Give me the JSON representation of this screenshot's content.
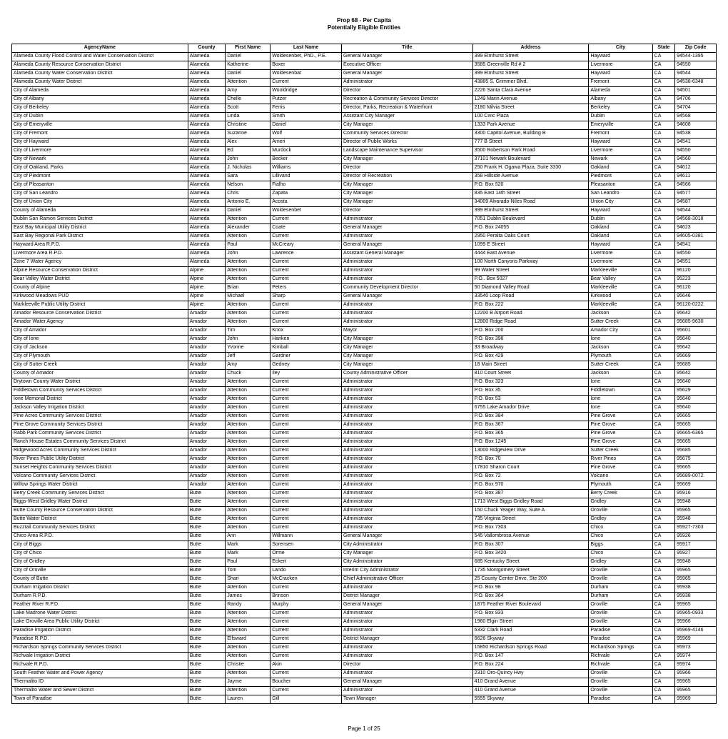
{
  "doc": {
    "title_line1": "Prop 68 - Per Capita",
    "title_line2": "Potentially Eligible Entities",
    "footer": "Page 1 of 25"
  },
  "table": {
    "columns": [
      "AgencyName",
      "County",
      "First Name",
      "Last Name",
      "Title",
      "Address",
      "City",
      "State",
      "Zip Code"
    ],
    "rows": [
      [
        "Alameda County Flood Control and Water Conservation District",
        "Alameda",
        "Daniel",
        "Woldesenbet, PhD., P.E.",
        "General Manager",
        "399 Elmhurst Street",
        "Hayward",
        "CA",
        "94544-1395"
      ],
      [
        "Alameda County Resource Conservation District",
        "Alameda",
        "Katherine",
        "Boxer",
        "Executive Officer",
        "3585 Greenville Rd # 2",
        "Livermore",
        "CA",
        "94550"
      ],
      [
        "Alameda County Water Conservation District",
        "Alameda",
        "Daniel",
        "Woldesenbat",
        "General Manager",
        "399 Elmhurst Street",
        "Hayward",
        "CA",
        "94544"
      ],
      [
        "Alameda County Water District",
        "Alameda",
        "Attention",
        "Current",
        "Administrator",
        "43885 S. Grimmer Blvd.",
        "Fremont",
        "CA",
        "94538-6348"
      ],
      [
        "City of Alameda",
        "Alameda",
        "Amy",
        "Wooldridge",
        "Director",
        "2226 Santa Clara Avenue",
        "Alameda",
        "CA",
        "94501"
      ],
      [
        "City of Albany",
        "Alameda",
        "Chelle",
        "Putzer",
        "Recreation & Community Services Director",
        "1249 Marin Avenue",
        "Albany",
        "CA",
        "94706"
      ],
      [
        "City of Berkeley",
        "Alameda",
        "Scott",
        "Ferris",
        "Director, Parks, Recreation & Waterfront",
        "2180 Milvia Street",
        "Berkeley",
        "CA",
        "94704"
      ],
      [
        "City of Dublin",
        "Alameda",
        "Linda",
        "Smith",
        "Assistant City Manager",
        "100 Civic Plaza",
        "Dublin",
        "CA",
        "94568"
      ],
      [
        "City of Emeryville",
        "Alameda",
        "Christine",
        "Daniel",
        "City Manager",
        "1333 Park Avenue",
        "Emeryville",
        "CA",
        "94608"
      ],
      [
        "City of Fremont",
        "Alameda",
        "Suzanne",
        "Wolf",
        "Community Services Director",
        "3300 Capitol Avenue, Building B",
        "Fremont",
        "CA",
        "94538"
      ],
      [
        "City of Hayward",
        "Alameda",
        "Alex",
        "Ameri",
        "Director of Public Works",
        "777 B Street",
        "Hayward",
        "CA",
        "94541"
      ],
      [
        "City of Livermore",
        "Alameda",
        "Ed",
        "Murdock",
        "Landscape Maintenance Supervisor",
        "3500 Robertson Park Road",
        "Livermore",
        "CA",
        "94550"
      ],
      [
        "City of Newark",
        "Alameda",
        "John",
        "Becker",
        "City Manager",
        "37101 Newark Boulevard",
        "Newark",
        "CA",
        "94560"
      ],
      [
        "City of Oakland, Parks",
        "Alameda",
        "J. Nicholas",
        "Williams",
        "Director",
        "250 Frank H. Ogawa Plaza, Suite 3330",
        "Oakland",
        "CA",
        "94612"
      ],
      [
        "City of Piedmont",
        "Alameda",
        "Sara",
        "Lillivand",
        "Director of Recreation",
        "358 Hillside Avenue",
        "Piedmont",
        "CA",
        "94611"
      ],
      [
        "City of Pleasanton",
        "Alameda",
        "Nelson",
        "Fialho",
        "City Manager",
        "P.O. Box 520",
        "Pleasanton",
        "CA",
        "94566"
      ],
      [
        "City of San Leandro",
        "Alameda",
        "Chris",
        "Zapata",
        "City Manager",
        "835 East 14th Street",
        "San Leandro",
        "CA",
        "94577"
      ],
      [
        "City of Union City",
        "Alameda",
        "Antonio E.",
        "Acosta",
        "City Manager",
        "34009 Alvarado-Niles Road",
        "Union City",
        "CA",
        "94587"
      ],
      [
        "County of Alameda",
        "Alameda",
        "Daniel",
        "Woldesenbet",
        "Director",
        "399 Elmhurst Street",
        "Hayward",
        "CA",
        "94544"
      ],
      [
        "Dublin San Ramon Services District",
        "Alameda",
        "Attention",
        "Current",
        "Administrator",
        "7051 Dublin Boulevard",
        "Dublin",
        "CA",
        "94568-3018"
      ],
      [
        "East Bay Municipal Utility District",
        "Alameda",
        "Alexander",
        "Coate",
        "General Manager",
        "P.O. Box 24055",
        "Oakland",
        "CA",
        "94623"
      ],
      [
        "East Bay Regional Park District",
        "Alameda",
        "Attention",
        "Current",
        "Administrator",
        "2950 Peralta Oaks Court",
        "Oakland",
        "CA",
        "94605-0381"
      ],
      [
        "Hayward Area R.P.D.",
        "Alameda",
        "Paul",
        "McCreary",
        "General Manager",
        "1099 E Street",
        "Hayward",
        "CA",
        "94541"
      ],
      [
        "Livermore Area R.P.D.",
        "Alameda",
        "John",
        "Lawrence",
        "Assistant General Manager",
        "4444 East Avenue",
        "Livermore",
        "CA",
        "94550"
      ],
      [
        "Zone 7 Water Agency",
        "Alameda",
        "Attention",
        "Current",
        "Administrator",
        "100 North Canyons Parkway",
        "Livermore",
        "CA",
        "94551"
      ],
      [
        "Alpine Resource Conservation District",
        "Alpine",
        "Attention",
        "Current",
        "Administrator",
        "99 Water Street",
        "Markleeville",
        "CA",
        "96120"
      ],
      [
        "Bear Valley Water District",
        "Alpine",
        "Attention",
        "Current",
        "Administrator",
        "P.O.. Box 5027",
        "Bear Valley",
        "CA",
        "95223"
      ],
      [
        "County of Alpine",
        "Alpine",
        "Brian",
        "Peters",
        "Community Development Director",
        "50 Diamond Valley Road",
        "Markleeville",
        "CA",
        "96120"
      ],
      [
        "Kirkwood Meadows PUD",
        "Alpine",
        "Michael",
        "Sharp",
        "General Manager",
        "33540 Loop Road",
        "Kirkwood",
        "CA",
        "95646"
      ],
      [
        "Markleeville Public Utility District",
        "Alpine",
        "Attention",
        "Current",
        "Administrator",
        "P.O. Box 222",
        "Markleeville",
        "CA",
        "96120-0222"
      ],
      [
        "Amador Resource Conservation District",
        "Amador",
        "Attention",
        "Current",
        "Administrator",
        "12200 B Airport Road",
        "Jackson",
        "CA",
        "95642"
      ],
      [
        "Amador Water Agency",
        "Amador",
        "Attention",
        "Current",
        "Administrator",
        "12800 Ridge Road",
        "Sutter Creek",
        "CA",
        "95685-9630"
      ],
      [
        "City of Amador",
        "Amador",
        "Tim",
        "Knox",
        "Mayor",
        "P.O. Box 200",
        "Amador City",
        "CA",
        "95601"
      ],
      [
        "City of Ione",
        "Amador",
        "John",
        "Hanken",
        "City Manager",
        "P.O. Box 398",
        "Ione",
        "CA",
        "95640"
      ],
      [
        "City of Jackson",
        "Amador",
        "Yvonne",
        "Kimball",
        "City Manager",
        "33 Broadway",
        "Jackson",
        "CA",
        "95642"
      ],
      [
        "City of Plymouth",
        "Amador",
        "Jeff",
        "Gardner",
        "City Manager",
        "P.O. Box 429",
        "Plymouth",
        "CA",
        "95669"
      ],
      [
        "City of Sutter Creek",
        "Amador",
        "Amy",
        "Gedney",
        "City Manager",
        "18 Main Street",
        "Sutter Creek",
        "CA",
        "95685"
      ],
      [
        "County of Amador",
        "Amador",
        "Chuck",
        "Iley",
        "County Administrative Officer",
        "810 Court Street",
        "Jackson",
        "CA",
        "95642"
      ],
      [
        "Drytown County Water District",
        "Amador",
        "Attention",
        "Current",
        "Administrator",
        "P.O. Box 323",
        "Ione",
        "CA",
        "95640"
      ],
      [
        "Fiddletown Community Services District",
        "Amador",
        "Attention",
        "Current",
        "Administrator",
        "P.O. Box 35",
        "Fiddletown",
        "CA",
        "95629"
      ],
      [
        "Ione Memorial District",
        "Amador",
        "Attention",
        "Current",
        "Administrator",
        "P.O. Box 53",
        "Ione",
        "CA",
        "95640"
      ],
      [
        "Jackson Valley Irrigation District",
        "Amador",
        "Attention",
        "Current",
        "Administrator",
        "6755 Lake Amador Drive",
        "Ione",
        "CA",
        "95640"
      ],
      [
        "Pine Acres Community Services District",
        "Amador",
        "Attention",
        "Current",
        "Administrator",
        "P.O. Box 384",
        "Pine Grove",
        "CA",
        "95665"
      ],
      [
        "Pine Grove Community Services District",
        "Amador",
        "Attention",
        "Current",
        "Administrator",
        "P.O. Box 367",
        "Pine Grove",
        "CA",
        "95665"
      ],
      [
        "Rabb Park Community Services District",
        "Amador",
        "Attention",
        "Current",
        "Administrator",
        "P.O. Box 365",
        "Pine Grove",
        "CA",
        "95665-6365"
      ],
      [
        "Ranch House Estates Community Services District",
        "Amador",
        "Attention",
        "Current",
        "Administrator",
        "P.O. Box 1245",
        "Pine Grove",
        "CA",
        "95665"
      ],
      [
        "Ridgewood Acres Community Services District",
        "Amador",
        "Attention",
        "Current",
        "Administrator",
        "13000 Ridgeview Drive",
        "Sutter Creek",
        "CA",
        "95685"
      ],
      [
        "River Pines Public Utility District",
        "Amador",
        "Attention",
        "Current",
        "Administrator",
        "P.O. Box 70",
        "River Pines",
        "CA",
        "95675"
      ],
      [
        "Sunset Heights Community Services District",
        "Amador",
        "Attention",
        "Current",
        "Administrator",
        "17810 Sharon Court",
        "Pine Grove",
        "CA",
        "95665"
      ],
      [
        "Volcano Community Services District",
        "Amador",
        "Attention",
        "Current",
        "Administrator",
        "P.O. Box 72",
        "Volcano",
        "CA",
        "95689-0072"
      ],
      [
        "Willow Springs Water District",
        "Amador",
        "Attention",
        "Current",
        "Administrator",
        "P.O. Box 970",
        "Plymouth",
        "CA",
        "95669"
      ],
      [
        "Berry Creek Community Services District",
        "Butte",
        "Attention",
        "Current",
        "Administrator",
        "P.O. Box 387",
        "Berry Creek",
        "CA",
        "95916"
      ],
      [
        "Biggs-West Gridley Water District",
        "Butte",
        "Attention",
        "Current",
        "Administrator",
        "1713 West Biggs Gridley Road",
        "Gridley",
        "CA",
        "95948"
      ],
      [
        "Butte County Resource Conservation District",
        "Butte",
        "Attention",
        "Current",
        "Administrator",
        "150 Chuck Yeager Way, Suite A",
        "Oroville",
        "CA",
        "95965"
      ],
      [
        "Butte Water District",
        "Butte",
        "Attention",
        "Current",
        "Administrator",
        "735 Virginia Street",
        "Gridley",
        "CA",
        "95948"
      ],
      [
        "Buzztail Community Services District",
        "Butte",
        "Attention",
        "Current",
        "Administrator",
        "P.O. Box 7303",
        "Chico",
        "CA",
        "95927-7303"
      ],
      [
        "Chico Area R.P.D.",
        "Butte",
        "Ann",
        "Willmann",
        "General Manager",
        "545 Vallombrosa Avenue",
        "Chico",
        "CA",
        "95926"
      ],
      [
        "City of Biggs",
        "Butte",
        "Mark",
        "Sorensen",
        "City Administrator",
        "P.O. Box 307",
        "Biggs",
        "CA",
        "95917"
      ],
      [
        "City of Chico",
        "Butte",
        "Mark",
        "Orme",
        "City Manager",
        "P.O. Box 3420",
        "Chico",
        "CA",
        "95927"
      ],
      [
        "City of Gridley",
        "Butte",
        "Paul",
        "Eckert",
        "City Administrator",
        "685 Kentucky Street",
        "Gridley",
        "CA",
        "95948"
      ],
      [
        "City of Oroville",
        "Butte",
        "Tom",
        "Lando",
        "Interim City Administrator",
        "1735 Montgomery Street",
        "Oroville",
        "CA",
        "95965"
      ],
      [
        "County of Butte",
        "Butte",
        "Shari",
        "McCracken",
        "Chief Administrative Officer",
        "25 County Center Drive, Ste 200",
        "Oroville",
        "CA",
        "95965"
      ],
      [
        "Durham Irrigation District",
        "Butte",
        "Attention",
        "Current",
        "Administrator",
        "P.O. Box 98",
        "Durham",
        "CA",
        "95938"
      ],
      [
        "Durham R.P.D.",
        "Butte",
        "James",
        "Brinson",
        "District Manager",
        "P.O. Box 364",
        "Durham",
        "CA",
        "95938"
      ],
      [
        "Feather River R.P.D.",
        "Butte",
        "Randy",
        "Murphy",
        "General Manager",
        "1875 Feather River Boulevard",
        "Oroville",
        "CA",
        "95965"
      ],
      [
        "Lake Madrone Water District",
        "Butte",
        "Attention",
        "Current",
        "Administrator",
        "P.O. Box 933",
        "Oroville",
        "CA",
        "95965-0933"
      ],
      [
        "Lake Oroville Area Public Utility District",
        "Butte",
        "Attention",
        "Current",
        "Administrator",
        "1960 Elgin Street",
        "Oroville",
        "CA",
        "95966"
      ],
      [
        "Paradise Irrigation District",
        "Butte",
        "Attention",
        "Current",
        "Administrator",
        "6332 Clark Road",
        "Paradise",
        "CA",
        "95969-4146"
      ],
      [
        "Paradise R.P.D.",
        "Butte",
        "Elfsward",
        "Current",
        "District Manager",
        "6626 Skyway",
        "Paradise",
        "CA",
        "95969"
      ],
      [
        "Richardson Springs Community Services District",
        "Butte",
        "Attention",
        "Current",
        "Administrator",
        "15850 Richardson Springs Road",
        "Richardson Springs",
        "CA",
        "95973"
      ],
      [
        "Richvale Irrigation District",
        "Butte",
        "Attention",
        "Current",
        "Administrator",
        "P.O. Box 147",
        "Richvale",
        "CA",
        "95974"
      ],
      [
        "Richvale R.P.D.",
        "Butte",
        "Christie",
        "Akin",
        "Director",
        "P.O. Box 224",
        "Richvale",
        "CA",
        "95974"
      ],
      [
        "South Feather Water and Power Agency",
        "Butte",
        "Attention",
        "Current",
        "Administrator",
        "2310 Oro-Quincy Hwy",
        "Oroville",
        "CA",
        "95966"
      ],
      [
        "Thermalito ID",
        "Butte",
        "Jayme",
        "Boucher",
        "General Manager",
        "410 Grand Avenue",
        "Oroville",
        "CA",
        "95965"
      ],
      [
        "Thermalito Water and Sewer District",
        "Butte",
        "Attention",
        "Current",
        "Administrator",
        "410 Grand Avenue",
        "Oroville",
        "CA",
        "95965"
      ],
      [
        "Town of Paradise",
        "Butte",
        "Lauren",
        "Gill",
        "Town Manager",
        "5555 Skyway",
        "Paradise",
        "CA",
        "95969"
      ]
    ]
  }
}
